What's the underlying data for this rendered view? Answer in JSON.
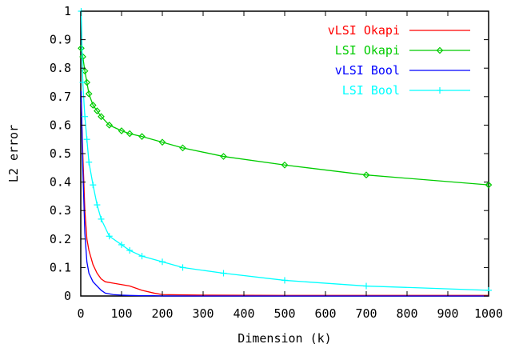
{
  "chart_data": {
    "type": "line",
    "xlabel": "Dimension (k)",
    "ylabel": "L2 error",
    "xlim": [
      0,
      1000
    ],
    "ylim": [
      0,
      1
    ],
    "x_ticks": [
      0,
      100,
      200,
      300,
      400,
      500,
      600,
      700,
      800,
      900,
      1000
    ],
    "y_ticks": [
      0,
      0.1,
      0.2,
      0.3,
      0.4,
      0.5,
      0.6,
      0.7,
      0.8,
      0.9,
      1
    ],
    "x_tick_labels": [
      "0",
      "100",
      "200",
      "300",
      "400",
      "500",
      "600",
      "700",
      "800",
      "900",
      "1000"
    ],
    "y_tick_labels": [
      "0",
      "0.1",
      "0.2",
      "0.3",
      "0.4",
      "0.5",
      "0.6",
      "0.7",
      "0.8",
      "0.9",
      "1"
    ],
    "grid": false,
    "legend_position": "top-right",
    "series": [
      {
        "name": "vLSI Okapi",
        "color": "#ff0000",
        "marker": "none",
        "x": [
          1,
          5,
          10,
          15,
          20,
          30,
          40,
          50,
          60,
          80,
          100,
          120,
          150,
          180,
          200,
          300,
          500,
          700,
          1000
        ],
        "y": [
          0.68,
          0.5,
          0.3,
          0.2,
          0.16,
          0.11,
          0.08,
          0.06,
          0.05,
          0.045,
          0.04,
          0.035,
          0.02,
          0.01,
          0.005,
          0.003,
          0.002,
          0.002,
          0.002
        ]
      },
      {
        "name": "LSI Okapi",
        "color": "#00cc00",
        "marker": "diamond",
        "x": [
          1,
          5,
          10,
          15,
          20,
          30,
          40,
          50,
          70,
          100,
          120,
          150,
          200,
          250,
          350,
          500,
          700,
          1000
        ],
        "y": [
          0.87,
          0.84,
          0.79,
          0.75,
          0.71,
          0.67,
          0.65,
          0.63,
          0.6,
          0.58,
          0.57,
          0.56,
          0.54,
          0.52,
          0.49,
          0.46,
          0.425,
          0.39
        ]
      },
      {
        "name": "vLSI Bool",
        "color": "#0000ff",
        "marker": "none",
        "x": [
          1,
          5,
          10,
          15,
          20,
          30,
          40,
          50,
          60,
          80,
          100,
          120,
          150,
          180,
          200,
          300,
          500,
          1000
        ],
        "y": [
          0.72,
          0.45,
          0.22,
          0.12,
          0.08,
          0.05,
          0.035,
          0.02,
          0.01,
          0.005,
          0.003,
          0.002,
          0.001,
          0.001,
          0,
          0,
          0,
          0
        ]
      },
      {
        "name": "LSI Bool",
        "color": "#00ffff",
        "marker": "plus",
        "x": [
          1,
          5,
          10,
          15,
          20,
          30,
          40,
          50,
          70,
          100,
          120,
          150,
          200,
          250,
          350,
          500,
          700,
          1000
        ],
        "y": [
          1.0,
          0.75,
          0.63,
          0.55,
          0.47,
          0.39,
          0.32,
          0.27,
          0.21,
          0.18,
          0.16,
          0.14,
          0.12,
          0.1,
          0.08,
          0.055,
          0.035,
          0.02
        ]
      }
    ]
  }
}
